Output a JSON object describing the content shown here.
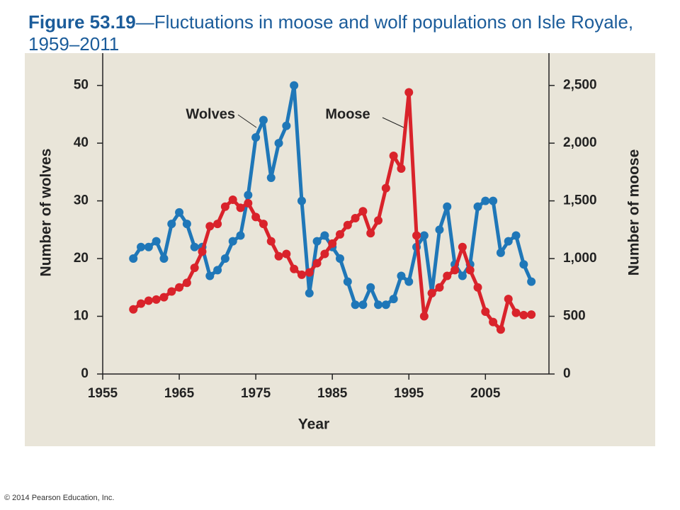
{
  "chart_data": {
    "type": "line",
    "title_label": "Figure 53.19",
    "title": "—Fluctuations in moose and wolf populations on Isle Royale, 1959–2011",
    "xlabel": "Year",
    "ylabel": "Number of wolves",
    "y2label": "Number of moose",
    "copyright": "© 2014 Pearson Education, Inc.",
    "x": [
      1959,
      1960,
      1961,
      1962,
      1963,
      1964,
      1965,
      1966,
      1967,
      1968,
      1969,
      1970,
      1971,
      1972,
      1973,
      1974,
      1975,
      1976,
      1977,
      1978,
      1979,
      1980,
      1981,
      1982,
      1983,
      1984,
      1985,
      1986,
      1987,
      1988,
      1989,
      1990,
      1991,
      1992,
      1993,
      1994,
      1995,
      1996,
      1997,
      1998,
      1999,
      2000,
      2001,
      2002,
      2003,
      2004,
      2005,
      2006,
      2007,
      2008,
      2009,
      2010,
      2011
    ],
    "series": [
      {
        "name": "Wolves",
        "color": "#1f77b8",
        "axis": "y",
        "values": [
          20,
          22,
          22,
          23,
          20,
          26,
          28,
          26,
          22,
          22,
          17,
          18,
          20,
          23,
          24,
          31,
          41,
          44,
          34,
          40,
          43,
          50,
          30,
          14,
          23,
          24,
          22,
          20,
          16,
          12,
          12,
          15,
          12,
          12,
          13,
          17,
          16,
          22,
          24,
          14,
          25,
          29,
          19,
          17,
          19,
          29,
          30,
          30,
          21,
          23,
          24,
          19,
          16
        ]
      },
      {
        "name": "Moose",
        "color": "#d9232b",
        "axis": "y2",
        "values": [
          560,
          610,
          635,
          645,
          665,
          715,
          750,
          790,
          920,
          1060,
          1280,
          1300,
          1450,
          1510,
          1440,
          1480,
          1360,
          1300,
          1150,
          1020,
          1040,
          910,
          860,
          880,
          960,
          1040,
          1130,
          1210,
          1290,
          1350,
          1410,
          1220,
          1330,
          1610,
          1890,
          1780,
          2440,
          1200,
          500,
          700,
          750,
          850,
          900,
          1100,
          900,
          750,
          540,
          450,
          385,
          650,
          530,
          510,
          515
        ]
      }
    ],
    "xlim": [
      1955,
      2013.3
    ],
    "xticks": [
      1955,
      1965,
      1975,
      1985,
      1995,
      2005
    ],
    "ylim": [
      0,
      55.6
    ],
    "yticks": [
      0,
      10,
      20,
      30,
      40,
      50
    ],
    "y2lim": [
      0,
      2780
    ],
    "y2ticks": [
      0,
      500,
      {
        "value": 1000,
        "label": "1,000"
      },
      {
        "value": 1500,
        "label": "1,500"
      },
      {
        "value": 2000,
        "label": "2,000"
      },
      {
        "value": 2500,
        "label": "2,500"
      }
    ],
    "grid": false
  }
}
